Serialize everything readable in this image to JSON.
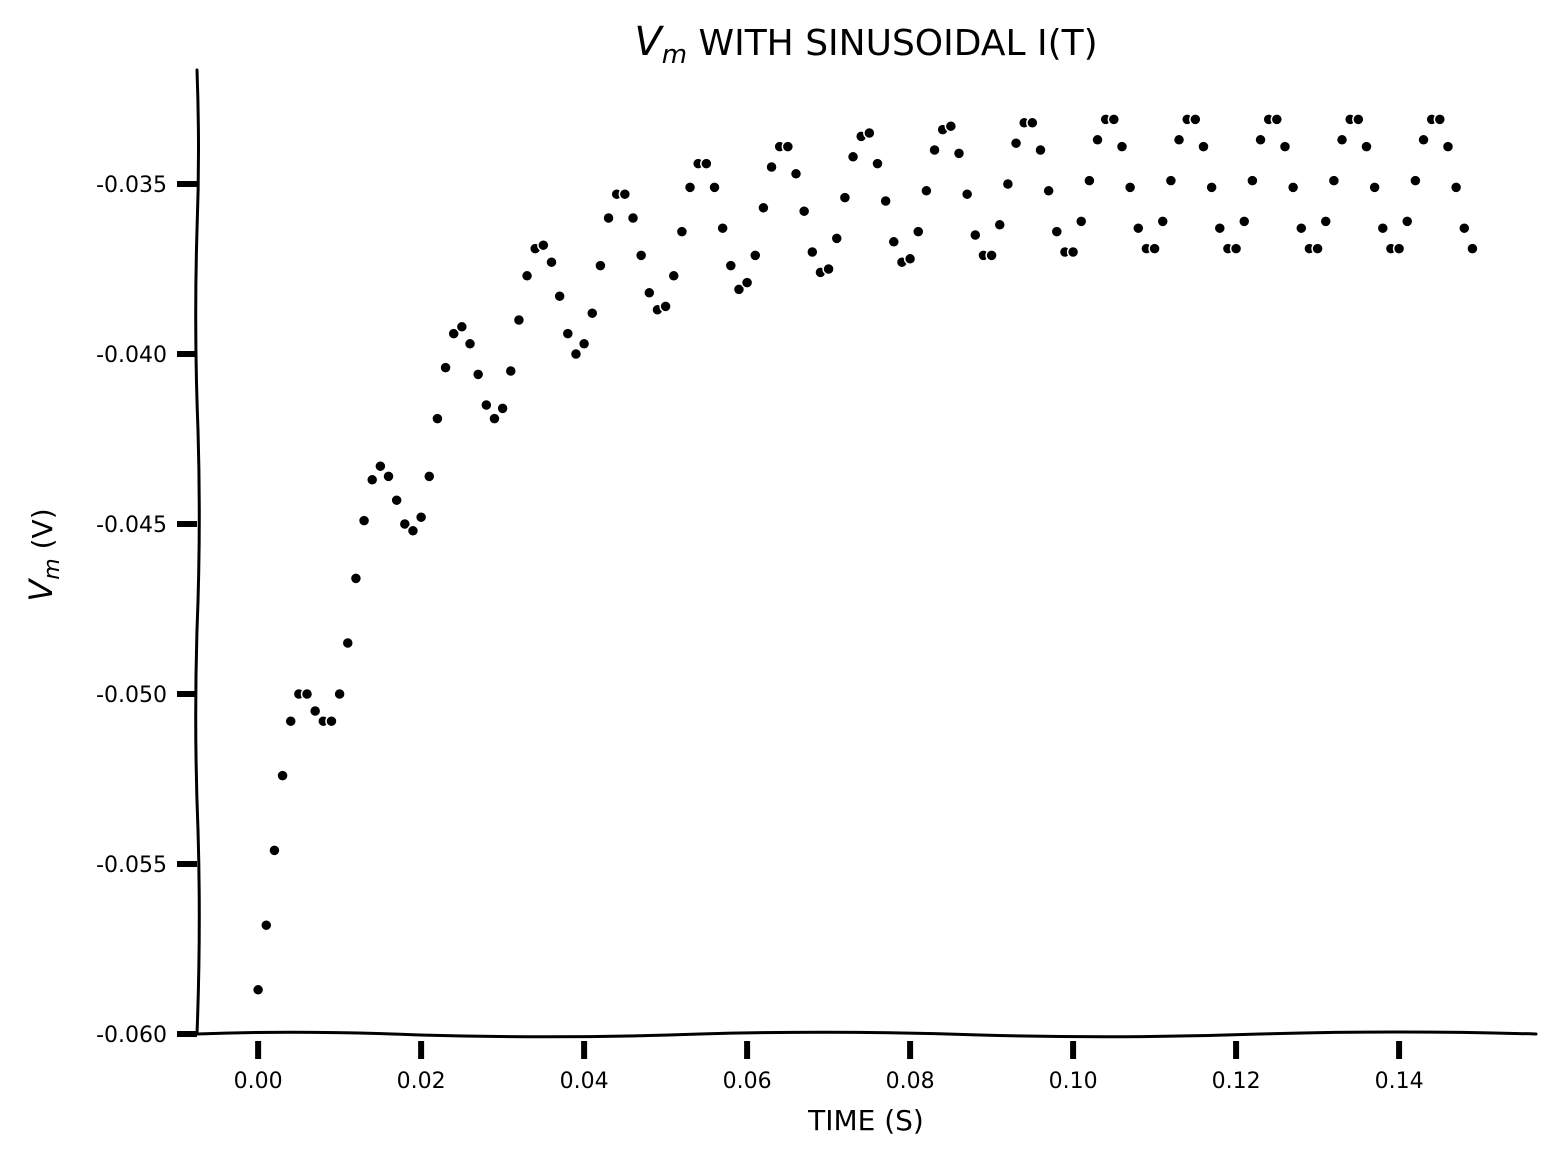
{
  "chart_data": {
    "type": "scatter",
    "title": "V",
    "title_sub": "m",
    "title_rest": " WITH SINUSOIDAL I(T)",
    "xlabel": "TIME (S)",
    "ylabel": "V",
    "ylabel_sub": "m",
    "ylabel_rest": " (V)",
    "xlim": [
      -0.0075,
      0.1568
    ],
    "ylim": [
      -0.06,
      -0.0325
    ],
    "x_ticks": [
      0.0,
      0.02,
      0.04,
      0.06,
      0.08,
      0.1,
      0.12,
      0.14
    ],
    "x_tick_labels": [
      "0.00",
      "0.02",
      "0.04",
      "0.06",
      "0.08",
      "0.10",
      "0.12",
      "0.14"
    ],
    "y_ticks": [
      -0.06,
      -0.055,
      -0.05,
      -0.045,
      -0.04,
      -0.035
    ],
    "y_tick_labels": [
      "-0.060",
      "-0.055",
      "-0.050",
      "-0.045",
      "-0.040",
      "-0.035"
    ],
    "grid": false,
    "marker_color": "#000000",
    "series": [
      {
        "x": [
          0.0,
          0.001,
          0.002,
          0.003,
          0.004,
          0.005,
          0.006,
          0.007,
          0.008,
          0.009,
          0.01,
          0.011,
          0.012,
          0.013,
          0.014,
          0.015,
          0.016,
          0.017,
          0.018,
          0.019,
          0.02,
          0.021,
          0.022,
          0.023,
          0.024,
          0.025,
          0.026,
          0.027,
          0.028,
          0.029,
          0.03,
          0.031,
          0.032,
          0.033,
          0.034,
          0.035,
          0.036,
          0.037,
          0.038,
          0.039,
          0.04,
          0.041,
          0.042,
          0.043,
          0.044,
          0.045,
          0.046,
          0.047,
          0.048,
          0.049,
          0.05,
          0.051,
          0.052,
          0.053,
          0.054,
          0.055,
          0.056,
          0.057,
          0.058,
          0.059,
          0.06,
          0.061,
          0.062,
          0.063,
          0.064,
          0.065,
          0.066,
          0.067,
          0.068,
          0.069,
          0.07,
          0.071,
          0.072,
          0.073,
          0.074,
          0.075,
          0.076,
          0.077,
          0.078,
          0.079,
          0.08,
          0.081,
          0.082,
          0.083,
          0.084,
          0.085,
          0.086,
          0.087,
          0.088,
          0.089,
          0.09,
          0.091,
          0.092,
          0.093,
          0.094,
          0.095,
          0.096,
          0.097,
          0.098,
          0.099,
          0.1,
          0.101,
          0.102,
          0.103,
          0.104,
          0.105,
          0.106,
          0.107,
          0.108,
          0.109,
          0.11,
          0.111,
          0.112,
          0.113,
          0.114,
          0.115,
          0.116,
          0.117,
          0.118,
          0.119,
          0.12,
          0.121,
          0.122,
          0.123,
          0.124,
          0.125,
          0.126,
          0.127,
          0.128,
          0.129,
          0.13,
          0.131,
          0.132,
          0.133,
          0.134,
          0.135,
          0.136,
          0.137,
          0.138,
          0.139,
          0.14,
          0.141,
          0.142,
          0.143,
          0.144,
          0.145,
          0.146,
          0.147,
          0.148,
          0.149
        ],
        "y": [
          -0.0587,
          -0.0568,
          -0.0546,
          -0.0524,
          -0.0508,
          -0.05,
          -0.05,
          -0.0505,
          -0.0508,
          -0.0508,
          -0.05,
          -0.0485,
          -0.0466,
          -0.0449,
          -0.0437,
          -0.0433,
          -0.0436,
          -0.0443,
          -0.045,
          -0.0452,
          -0.0448,
          -0.0436,
          -0.0419,
          -0.0404,
          -0.0394,
          -0.0392,
          -0.0397,
          -0.0406,
          -0.0415,
          -0.0419,
          -0.0416,
          -0.0405,
          -0.039,
          -0.0377,
          -0.0369,
          -0.0368,
          -0.0373,
          -0.0383,
          -0.0394,
          -0.04,
          -0.0397,
          -0.0388,
          -0.0374,
          -0.036,
          -0.0353,
          -0.0353,
          -0.036,
          -0.0371,
          -0.0382,
          -0.0387,
          -0.0386,
          -0.0377,
          -0.0364,
          -0.0351,
          -0.0344,
          -0.0344,
          -0.0351,
          -0.0363,
          -0.0374,
          -0.0381,
          -0.0379,
          -0.0371,
          -0.0357,
          -0.0345,
          -0.0339,
          -0.0339,
          -0.0347,
          -0.0358,
          -0.037,
          -0.0376,
          -0.0375,
          -0.0366,
          -0.0354,
          -0.0342,
          -0.0336,
          -0.0335,
          -0.0344,
          -0.0355,
          -0.0367,
          -0.0373,
          -0.0372,
          -0.0364,
          -0.0352,
          -0.034,
          -0.0334,
          -0.0333,
          -0.0341,
          -0.0353,
          -0.0365,
          -0.0371,
          -0.0371,
          -0.0362,
          -0.035,
          -0.0338,
          -0.0332,
          -0.0332,
          -0.034,
          -0.0352,
          -0.0364,
          -0.037,
          -0.037,
          -0.0361,
          -0.0349,
          -0.0337,
          -0.0331,
          -0.0331,
          -0.0339,
          -0.0351,
          -0.0363,
          -0.0369,
          -0.0369,
          -0.0361,
          -0.0349,
          -0.0337,
          -0.0331,
          -0.0331,
          -0.0339,
          -0.0351,
          -0.0363,
          -0.0369,
          -0.0369,
          -0.0361,
          -0.0349,
          -0.0337,
          -0.0331,
          -0.0331,
          -0.0339,
          -0.0351,
          -0.0363,
          -0.0369,
          -0.0369,
          -0.0361,
          -0.0349,
          -0.0337,
          -0.0331,
          -0.0331,
          -0.0339,
          -0.0351,
          -0.0363,
          -0.0369,
          -0.0369,
          -0.0361,
          -0.0349,
          -0.0337,
          -0.0331,
          -0.0331,
          -0.0339,
          -0.0351,
          -0.0363,
          -0.0369
        ]
      }
    ]
  }
}
